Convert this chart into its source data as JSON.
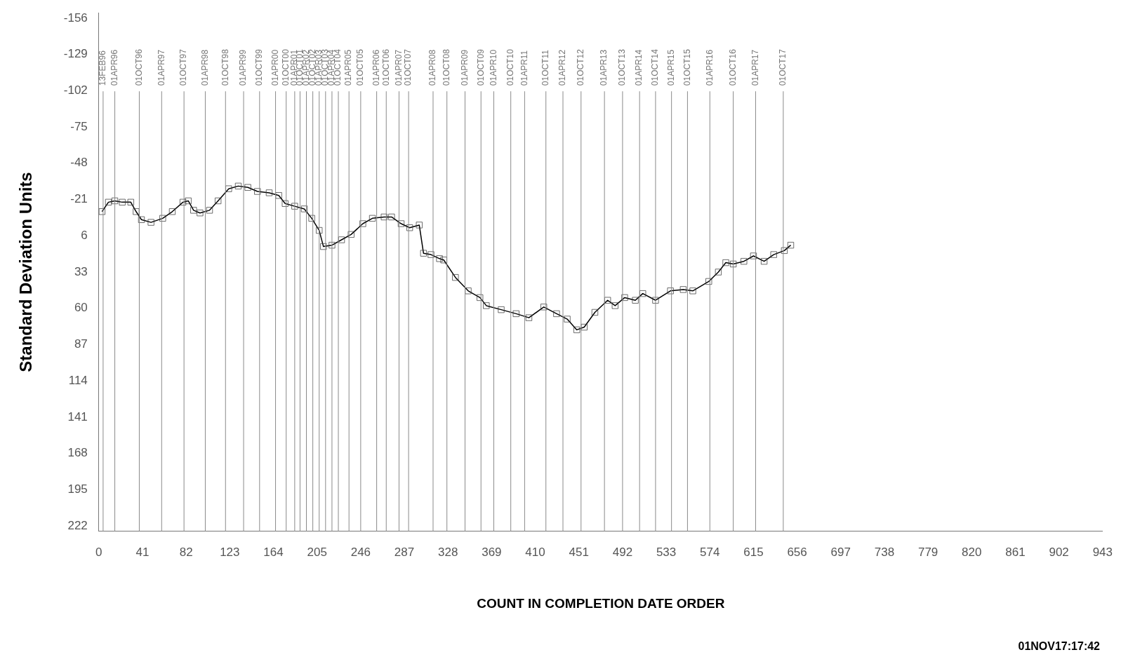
{
  "chart_data": {
    "type": "line",
    "xlabel": "COUNT IN COMPLETION DATE ORDER",
    "ylabel": "Standard Deviation Units",
    "annotations": [
      "01NOV17:17:42"
    ],
    "marker": "square",
    "line_style": "solid",
    "grid": false,
    "legend": false,
    "xlim": [
      0,
      943
    ],
    "xticks": [
      0,
      41,
      82,
      123,
      164,
      205,
      246,
      287,
      328,
      369,
      410,
      451,
      492,
      533,
      574,
      615,
      656,
      697,
      738,
      779,
      820,
      861,
      902,
      943
    ],
    "ylim": [
      226,
      -160
    ],
    "yticks": [
      -156,
      -129,
      -102,
      -75,
      -48,
      -21,
      6,
      33,
      60,
      87,
      114,
      141,
      168,
      195,
      222
    ],
    "series": [
      {
        "color": "#000000",
        "x": [
          3,
          9,
          15,
          22,
          30,
          35,
          40,
          49,
          60,
          69,
          79,
          84,
          89,
          95,
          104,
          112,
          122,
          131,
          140,
          149,
          160,
          169,
          175,
          184,
          193,
          200,
          207,
          211,
          219,
          228,
          237,
          248,
          257,
          268,
          275,
          284,
          292,
          301,
          305,
          312,
          320,
          324,
          335,
          347,
          358,
          364,
          378,
          392,
          404,
          418,
          430,
          440,
          449,
          456,
          466,
          478,
          485,
          494,
          504,
          511,
          523,
          537,
          549,
          558,
          573,
          582,
          589,
          596,
          606,
          615,
          625,
          634,
          644,
          650
        ],
        "values": [
          -12,
          -19,
          -20,
          -19,
          -19,
          -12,
          -6,
          -4,
          -7,
          -12,
          -19,
          -20,
          -13,
          -11,
          -13,
          -20,
          -29,
          -31,
          -30,
          -27,
          -26,
          -24,
          -18,
          -16,
          -14,
          -7,
          2,
          14,
          13,
          9,
          5,
          -3,
          -7,
          -8,
          -8,
          -3,
          0,
          -2,
          19,
          20,
          23,
          24,
          37,
          47,
          52,
          58,
          61,
          64,
          67,
          59,
          64,
          68,
          76,
          74,
          63,
          54,
          58,
          52,
          54,
          49,
          54,
          47,
          46,
          47,
          40,
          33,
          26,
          27,
          25,
          21,
          25,
          20,
          17,
          13
        ]
      }
    ],
    "ref_lines": [
      {
        "axis": "x",
        "value": 4,
        "label": "13FEB96"
      },
      {
        "axis": "x",
        "value": 15,
        "label": "01APR96"
      },
      {
        "axis": "x",
        "value": 38,
        "label": "01OCT96"
      },
      {
        "axis": "x",
        "value": 59,
        "label": "01APR97"
      },
      {
        "axis": "x",
        "value": 80,
        "label": "01OCT97"
      },
      {
        "axis": "x",
        "value": 100,
        "label": "01APR98"
      },
      {
        "axis": "x",
        "value": 119,
        "label": "01OCT98"
      },
      {
        "axis": "x",
        "value": 136,
        "label": "01APR99"
      },
      {
        "axis": "x",
        "value": 151,
        "label": "01OCT99"
      },
      {
        "axis": "x",
        "value": 166,
        "label": "01APR00"
      },
      {
        "axis": "x",
        "value": 176,
        "label": "01OCT00"
      },
      {
        "axis": "x",
        "value": 184,
        "label": "01APR01"
      },
      {
        "axis": "x",
        "value": 189,
        "label": "01OCT01"
      },
      {
        "axis": "x",
        "value": 195,
        "label": "01APR02"
      },
      {
        "axis": "x",
        "value": 201,
        "label": "01OCT02"
      },
      {
        "axis": "x",
        "value": 207,
        "label": "01APR03"
      },
      {
        "axis": "x",
        "value": 213,
        "label": "01OCT03"
      },
      {
        "axis": "x",
        "value": 219,
        "label": "01APR04"
      },
      {
        "axis": "x",
        "value": 225,
        "label": "01OCT04"
      },
      {
        "axis": "x",
        "value": 235,
        "label": "01APR05"
      },
      {
        "axis": "x",
        "value": 246,
        "label": "01OCT05"
      },
      {
        "axis": "x",
        "value": 261,
        "label": "01APR06"
      },
      {
        "axis": "x",
        "value": 270,
        "label": "01OCT06"
      },
      {
        "axis": "x",
        "value": 282,
        "label": "01APR07"
      },
      {
        "axis": "x",
        "value": 291,
        "label": "01OCT07"
      },
      {
        "axis": "x",
        "value": 314,
        "label": "01APR08"
      },
      {
        "axis": "x",
        "value": 327,
        "label": "01OCT08"
      },
      {
        "axis": "x",
        "value": 344,
        "label": "01APR09"
      },
      {
        "axis": "x",
        "value": 359,
        "label": "01OCT09"
      },
      {
        "axis": "x",
        "value": 371,
        "label": "01APR10"
      },
      {
        "axis": "x",
        "value": 387,
        "label": "01OCT10"
      },
      {
        "axis": "x",
        "value": 400,
        "label": "01APR11"
      },
      {
        "axis": "x",
        "value": 420,
        "label": "01OCT11"
      },
      {
        "axis": "x",
        "value": 436,
        "label": "01APR12"
      },
      {
        "axis": "x",
        "value": 453,
        "label": "01OCT12"
      },
      {
        "axis": "x",
        "value": 475,
        "label": "01APR13"
      },
      {
        "axis": "x",
        "value": 492,
        "label": "01OCT13"
      },
      {
        "axis": "x",
        "value": 508,
        "label": "01APR14"
      },
      {
        "axis": "x",
        "value": 523,
        "label": "01OCT14"
      },
      {
        "axis": "x",
        "value": 538,
        "label": "01APR15"
      },
      {
        "axis": "x",
        "value": 553,
        "label": "01OCT15"
      },
      {
        "axis": "x",
        "value": 574,
        "label": "01APR16"
      },
      {
        "axis": "x",
        "value": 596,
        "label": "01OCT16"
      },
      {
        "axis": "x",
        "value": 617,
        "label": "01APR17"
      },
      {
        "axis": "x",
        "value": 643,
        "label": "01OCT17"
      }
    ]
  }
}
